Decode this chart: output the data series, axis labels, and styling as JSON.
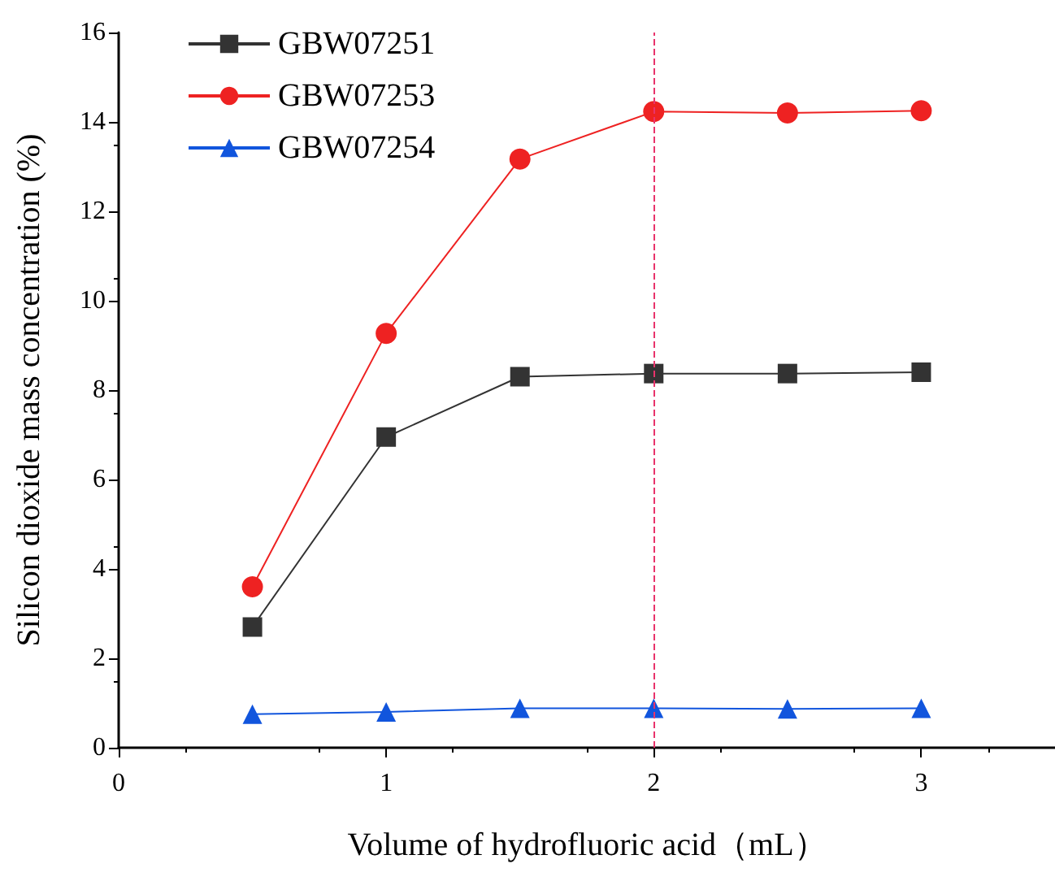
{
  "chart_data": {
    "type": "line",
    "xlabel": "Volume of hydrofluoric acid（mL）",
    "ylabel": "Silicon dioxide mass concentration (%)",
    "x": [
      0.5,
      1,
      1.5,
      2,
      2.5,
      3
    ],
    "series": [
      {
        "name": "GBW07251",
        "color": "#333333",
        "marker": "square",
        "values": [
          2.7,
          6.95,
          8.3,
          8.37,
          8.37,
          8.4
        ]
      },
      {
        "name": "GBW07253",
        "color": "#ee2222",
        "marker": "circle",
        "values": [
          3.6,
          9.27,
          13.17,
          14.23,
          14.2,
          14.25
        ]
      },
      {
        "name": "GBW07254",
        "color": "#1155dd",
        "marker": "triangle",
        "values": [
          0.75,
          0.8,
          0.88,
          0.88,
          0.87,
          0.88
        ]
      }
    ],
    "xlim": [
      0,
      3.5
    ],
    "xticks": [
      0,
      1,
      2,
      3
    ],
    "ylim": [
      0,
      16
    ],
    "yticks": [
      0,
      2,
      4,
      6,
      8,
      10,
      12,
      14,
      16
    ],
    "ref_lines": [
      {
        "axis": "x",
        "value": 2,
        "color": "#e8336b",
        "line_style": "dashed"
      }
    ],
    "legend": "top left",
    "grid": false,
    "line_style": "solid"
  }
}
